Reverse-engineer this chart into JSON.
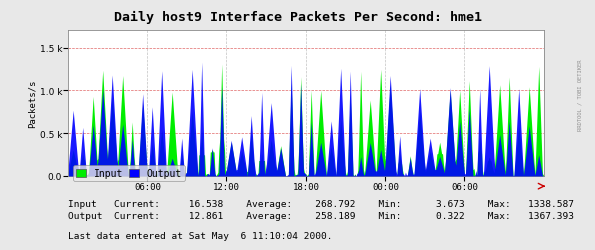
{
  "title": "Daily host9 Interface Packets Per Second: hme1",
  "ylabel": "Packets/s",
  "yticks": [
    0,
    500,
    1000,
    1500
  ],
  "ylim": [
    0,
    1700
  ],
  "xtick_labels": [
    "06:00",
    "12:00",
    "18:00",
    "00:00",
    "06:00"
  ],
  "bg_color": "#e8e8e8",
  "plot_bg_color": "#ffffff",
  "grid_h_color": "#cc0000",
  "grid_v_color": "#999999",
  "input_color": "#00ee00",
  "output_color": "#0000ff",
  "title_color": "#000000",
  "watermark": "RRDTOOL / TOBI OETIKER",
  "legend_input": "Input",
  "legend_output": "Output",
  "stats_line1": "Input   Current:     16.538    Average:    268.792    Min:      3.673    Max:   1338.587",
  "stats_line2": "Output  Current:     12.861    Average:    258.189    Min:      0.322    Max:   1367.393",
  "footer": "Last data entered at Sat May  6 11:10:04 2000.",
  "n_points": 500,
  "avg_input": 268.792,
  "avg_output": 258.189,
  "max_input": 1338.587,
  "max_output": 1367.393,
  "arrow_color": "#cc0000",
  "n_spikes": 48
}
